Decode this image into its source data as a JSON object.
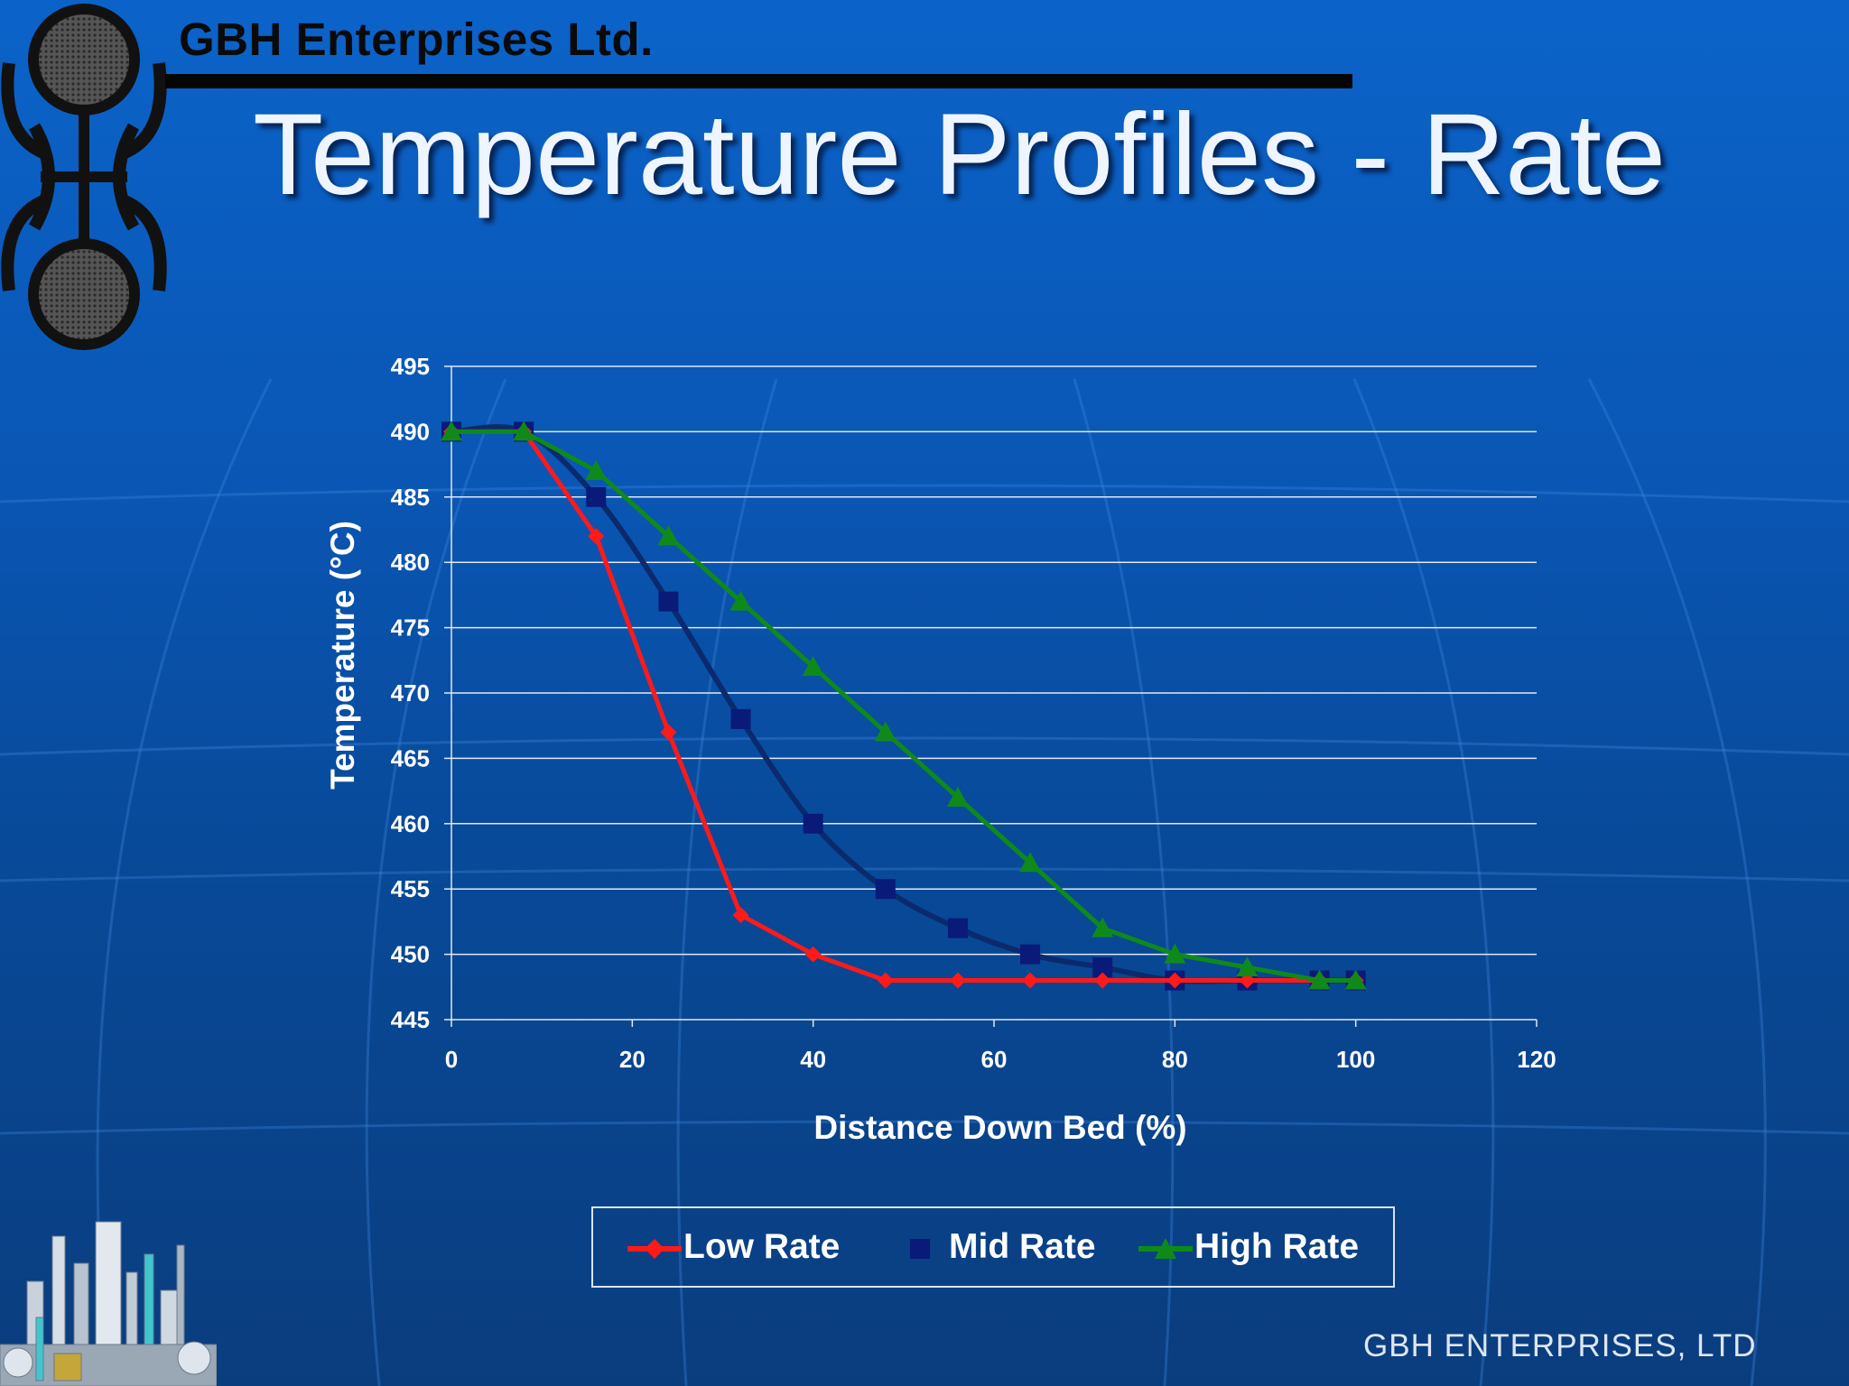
{
  "header": {
    "company": "GBH Enterprises Ltd.",
    "title": "Temperature Profiles - Rate"
  },
  "footer": {
    "text": "GBH ENTERPRISES, LTD"
  },
  "chart_data": {
    "type": "line",
    "title": "",
    "xlabel": "Distance Down Bed (%)",
    "ylabel": "Temperature (°C)",
    "xlim": [
      0,
      120
    ],
    "ylim": [
      445,
      495
    ],
    "xticks": [
      0,
      20,
      40,
      60,
      80,
      100,
      120
    ],
    "yticks": [
      445,
      450,
      455,
      460,
      465,
      470,
      475,
      480,
      485,
      490,
      495
    ],
    "grid": "horizontal",
    "legend": "bottom",
    "series": [
      {
        "name": "Low Rate",
        "color": "#ff1a1a",
        "marker": "diamond",
        "x": [
          0,
          8,
          16,
          24,
          32,
          40,
          48,
          56,
          64,
          72,
          80,
          88,
          96,
          100
        ],
        "y": [
          490,
          490,
          482,
          467,
          453,
          450,
          448,
          448,
          448,
          448,
          448,
          448,
          448,
          448
        ]
      },
      {
        "name": "Mid Rate",
        "color": "#0a1a78",
        "marker": "square",
        "x": [
          0,
          8,
          16,
          24,
          32,
          40,
          48,
          56,
          64,
          72,
          80,
          88,
          96,
          100
        ],
        "y": [
          490,
          490,
          485,
          477,
          468,
          460,
          455,
          452,
          450,
          449,
          448,
          448,
          448,
          448
        ]
      },
      {
        "name": "High Rate",
        "color": "#0f8a1a",
        "marker": "triangle",
        "x": [
          0,
          8,
          16,
          24,
          32,
          40,
          48,
          56,
          64,
          72,
          80,
          88,
          96,
          100
        ],
        "y": [
          490,
          490,
          487,
          482,
          477,
          472,
          467,
          462,
          457,
          452,
          450,
          449,
          448,
          448
        ]
      }
    ]
  }
}
